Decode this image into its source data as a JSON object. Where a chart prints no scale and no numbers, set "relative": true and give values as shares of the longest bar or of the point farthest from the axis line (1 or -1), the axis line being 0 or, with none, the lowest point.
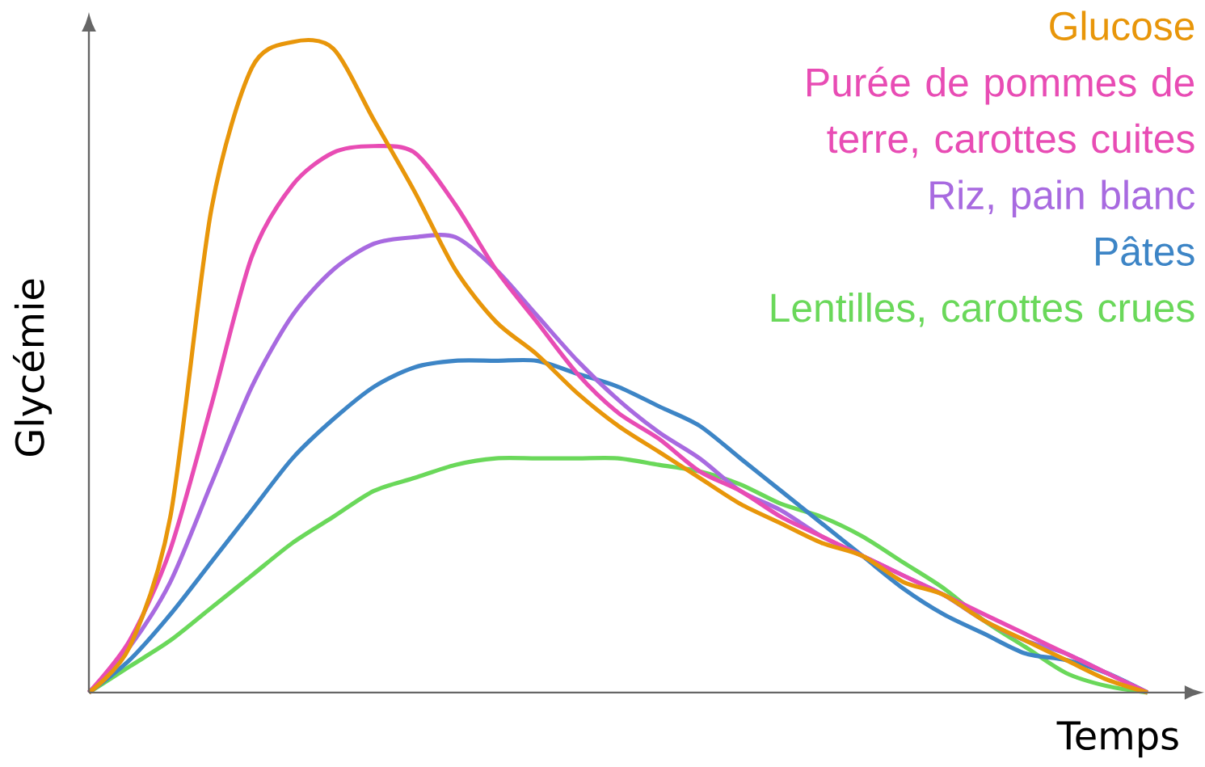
{
  "chart_data": {
    "type": "line",
    "relative": true,
    "xlabel": "Temps",
    "ylabel": "Glycémie",
    "legend": "top right",
    "categories": [
      null,
      null,
      null,
      null,
      null,
      null,
      null,
      null,
      null,
      null,
      null,
      null,
      null,
      null,
      null,
      null,
      null,
      null,
      null,
      null,
      null,
      null,
      null,
      null,
      null,
      null,
      null
    ],
    "series": [
      {
        "name": "Glucose",
        "color": "#e8960a",
        "values": [
          0,
          0.07,
          0.27,
          0.74,
          0.96,
          1.0,
          0.99,
          0.88,
          0.77,
          0.65,
          0.57,
          0.52,
          0.46,
          0.41,
          0.37,
          0.33,
          0.29,
          0.26,
          0.23,
          0.21,
          0.17,
          0.15,
          0.11,
          0.08,
          0.05,
          0.02,
          0
        ]
      },
      {
        "name": "Purée de pommes de terre, carottes cuites",
        "color": "#e84cb4",
        "values": [
          0,
          0.08,
          0.22,
          0.44,
          0.67,
          0.78,
          0.83,
          0.84,
          0.83,
          0.75,
          0.65,
          0.57,
          0.49,
          0.43,
          0.39,
          0.34,
          0.31,
          0.27,
          0.24,
          0.21,
          0.18,
          0.15,
          0.12,
          0.09,
          0.06,
          0.03,
          0
        ]
      },
      {
        "name": "Riz, pain blanc",
        "color": "#a86ae0",
        "values": [
          0,
          0.07,
          0.17,
          0.32,
          0.47,
          0.58,
          0.65,
          0.69,
          0.7,
          0.7,
          0.65,
          0.58,
          0.51,
          0.45,
          0.4,
          0.36,
          0.31,
          0.28,
          0.24,
          0.21,
          0.18,
          0.15,
          0.11,
          0.08,
          0.06,
          0.03,
          0
        ]
      },
      {
        "name": "Pâtes",
        "color": "#3d85c6",
        "values": [
          0,
          0.05,
          0.12,
          0.2,
          0.28,
          0.36,
          0.42,
          0.47,
          0.5,
          0.51,
          0.51,
          0.51,
          0.49,
          0.47,
          0.44,
          0.41,
          0.36,
          0.31,
          0.26,
          0.21,
          0.16,
          0.12,
          0.09,
          0.06,
          0.05,
          0.03,
          0
        ]
      },
      {
        "name": "Lentilles, carottes crues",
        "color": "#6ad85a",
        "values": [
          0,
          0.04,
          0.08,
          0.13,
          0.18,
          0.23,
          0.27,
          0.31,
          0.33,
          0.35,
          0.36,
          0.36,
          0.36,
          0.36,
          0.35,
          0.34,
          0.32,
          0.29,
          0.27,
          0.24,
          0.2,
          0.16,
          0.11,
          0.07,
          0.03,
          0.01,
          0
        ]
      }
    ]
  }
}
